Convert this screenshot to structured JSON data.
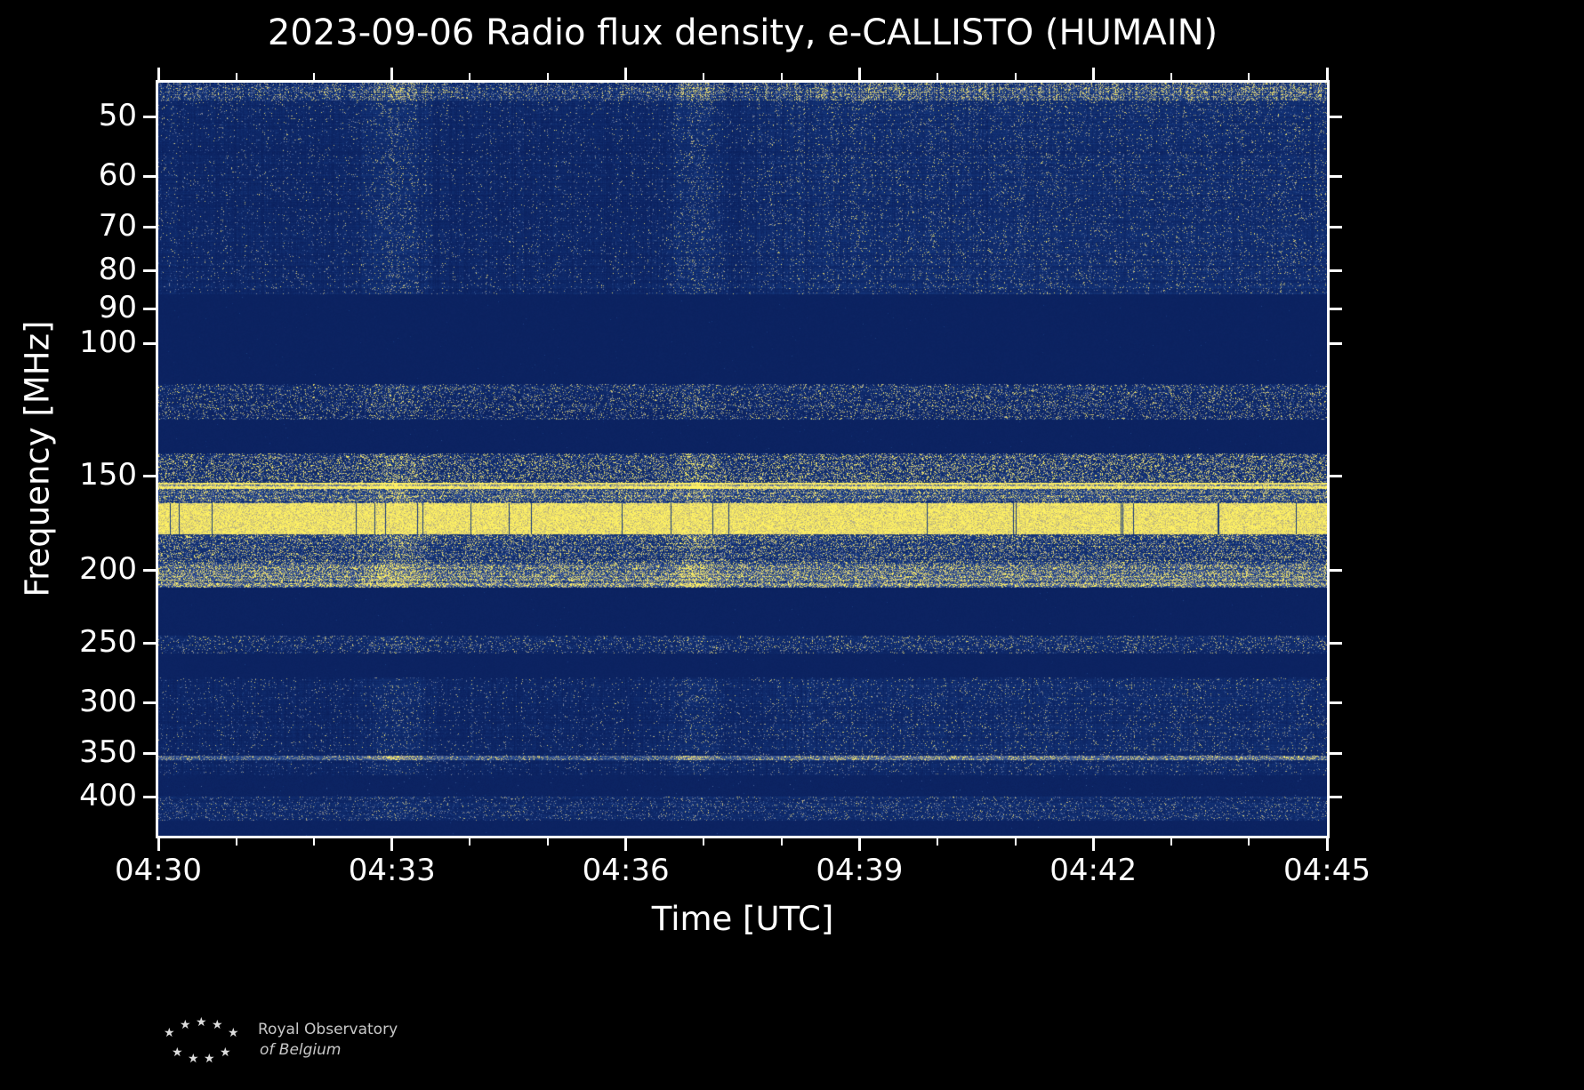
{
  "title": "2023-09-06 Radio flux density, e-CALLISTO (HUMAIN)",
  "x_axis": {
    "label": "Time [UTC]",
    "start_min": 0,
    "end_min": 15,
    "minor_step_min": 1,
    "ticks": [
      {
        "label": "04:30",
        "t": 0
      },
      {
        "label": "04:33",
        "t": 3
      },
      {
        "label": "04:36",
        "t": 6
      },
      {
        "label": "04:39",
        "t": 9
      },
      {
        "label": "04:42",
        "t": 12
      },
      {
        "label": "04:45",
        "t": 15
      }
    ]
  },
  "y_axis": {
    "label": "Frequency [MHz]",
    "scale": "log",
    "fmin": 45,
    "fmax": 450,
    "ticks": [
      50,
      60,
      70,
      80,
      90,
      100,
      150,
      200,
      250,
      300,
      350,
      400
    ]
  },
  "logo": {
    "star_glyph": "★",
    "line1": "Royal Observatory",
    "line2": "of Belgium"
  },
  "chart_data": {
    "type": "heatmap",
    "title": "2023-09-06 Radio flux density, e-CALLISTO (HUMAIN)",
    "xlabel": "Time [UTC]",
    "ylabel": "Frequency [MHz]",
    "date": "2023-09-06",
    "instrument": "e-CALLISTO",
    "station": "HUMAIN",
    "x_range_utc": [
      "04:30",
      "04:45"
    ],
    "x_tick_labels": [
      "04:30",
      "04:33",
      "04:36",
      "04:39",
      "04:42",
      "04:45"
    ],
    "y_tick_labels_mhz": [
      50,
      60,
      70,
      80,
      90,
      100,
      150,
      200,
      250,
      300,
      350,
      400
    ],
    "y_range_mhz": [
      45,
      450
    ],
    "y_scale": "log",
    "legend": "none",
    "grid": "off",
    "colormap": {
      "stops": [
        [
          0.0,
          "#0a1f5c"
        ],
        [
          0.3,
          "#16397f"
        ],
        [
          0.5,
          "#3d5b96"
        ],
        [
          0.65,
          "#7a82a0"
        ],
        [
          0.8,
          "#c9bd77"
        ],
        [
          1.0,
          "#fff263"
        ]
      ]
    },
    "bands": [
      {
        "f0": 45,
        "f1": 47.5,
        "base": 0.18,
        "noise": 0.12,
        "sp": 0.25,
        "sg": 0.7,
        "evt": 1.0,
        "rise": 0.8,
        "rowvar": 1,
        "colvar": 1,
        "desc": "bright noisy top edge rows"
      },
      {
        "f0": 47.5,
        "f1": 86,
        "base": 0.09,
        "noise": 0.07,
        "sp": 0.05,
        "sg": 0.75,
        "evt": 1.8,
        "rise": 1.2,
        "rowvar": 1,
        "colvar": 1,
        "desc": "broadband speckle 45-86 MHz; burst columns near 04:33 and 04:37; enhanced activity from ~04:37 to 04:45"
      },
      {
        "f0": 86,
        "f1": 113,
        "base": 0.045,
        "noise": 0.02,
        "sp": 0.001,
        "sg": 0.3,
        "desc": "quiet blanked gap (FM band)"
      },
      {
        "f0": 113,
        "f1": 126,
        "base": 0.1,
        "noise": 0.07,
        "sp": 0.18,
        "sg": 0.85,
        "evt": 0.5,
        "rise": 0.25,
        "rowvar": 1,
        "desc": "narrow speckled interference stripe ~115-125 MHz"
      },
      {
        "f0": 126,
        "f1": 140,
        "base": 0.05,
        "noise": 0.02,
        "sp": 0.002,
        "sg": 0.3,
        "desc": "quiet gap"
      },
      {
        "f0": 140,
        "f1": 153,
        "base": 0.14,
        "noise": 0.1,
        "sp": 0.3,
        "sg": 0.9,
        "evt": 0.5,
        "rise": 0.2,
        "rowvar": 1,
        "desc": "dense speckled band ~140-153 MHz"
      },
      {
        "f0": 153,
        "f1": 156,
        "base": 0.72,
        "noise": 0.12,
        "sp": 0.5,
        "sg": 0.5,
        "evt": 0.2,
        "rowvar": 1,
        "desc": "bright continuous carrier line ~154 MHz"
      },
      {
        "f0": 156,
        "f1": 163,
        "base": 0.3,
        "noise": 0.12,
        "sp": 0.35,
        "sg": 0.7,
        "evt": 0.3,
        "rowvar": 1,
        "desc": "medium speckled band"
      },
      {
        "f0": 163,
        "f1": 179,
        "base": 0.92,
        "noise": 0.1,
        "sp": 0.3,
        "sg": 0.2,
        "drop": 1,
        "desc": "saturated bright yellow band ~165-178 MHz with occasional dark dropout columns"
      },
      {
        "f0": 179,
        "f1": 196,
        "base": 0.22,
        "noise": 0.12,
        "sp": 0.3,
        "sg": 0.8,
        "evt": 0.4,
        "rowvar": 1,
        "desc": "medium speckle band"
      },
      {
        "f0": 196,
        "f1": 211,
        "base": 0.38,
        "noise": 0.14,
        "sp": 0.45,
        "sg": 0.7,
        "evt": 0.3,
        "rowvar": 1,
        "desc": "dense yellowish rows just below 200 MHz"
      },
      {
        "f0": 211,
        "f1": 244,
        "base": 0.05,
        "noise": 0.02,
        "sp": 0.001,
        "sg": 0.3,
        "desc": "quiet gap"
      },
      {
        "f0": 244,
        "f1": 258,
        "base": 0.11,
        "noise": 0.08,
        "sp": 0.14,
        "sg": 0.8,
        "evt": 0.5,
        "rise": 0.3,
        "rowvar": 1,
        "desc": "narrow speckled stripe near 250 MHz"
      },
      {
        "f0": 258,
        "f1": 277,
        "base": 0.05,
        "noise": 0.02,
        "sp": 0.001,
        "sg": 0.3,
        "desc": "quiet gap"
      },
      {
        "f0": 277,
        "f1": 352,
        "base": 0.08,
        "noise": 0.07,
        "sp": 0.05,
        "sg": 0.75,
        "evt": 1.5,
        "rise": 1.0,
        "rowvar": 1,
        "colvar": 1,
        "desc": "broadband speckle 277-352 MHz; burst columns near 04:33 and 04:37; busier right half"
      },
      {
        "f0": 352,
        "f1": 357,
        "base": 0.4,
        "noise": 0.12,
        "sp": 0.3,
        "sg": 0.5,
        "evt": 0.5,
        "rise": 0.3,
        "desc": "bright narrow line ~355 MHz"
      },
      {
        "f0": 357,
        "f1": 374,
        "base": 0.08,
        "noise": 0.06,
        "sp": 0.05,
        "sg": 0.7,
        "evt": 1.2,
        "rise": 0.8,
        "rowvar": 1,
        "colvar": 1,
        "desc": "speckle band"
      },
      {
        "f0": 374,
        "f1": 399,
        "base": 0.055,
        "noise": 0.03,
        "sp": 0.004,
        "sg": 0.5,
        "desc": "mostly quiet band"
      },
      {
        "f0": 399,
        "f1": 430,
        "base": 0.12,
        "noise": 0.08,
        "sp": 0.12,
        "sg": 0.7,
        "evt": 0.4,
        "rise": 0.3,
        "rowvar": 1,
        "desc": "speckled stripe ~400-425 MHz at bottom"
      },
      {
        "f0": 430,
        "f1": 450,
        "base": 0.05,
        "noise": 0.02,
        "sp": 0.001,
        "sg": 0.3,
        "desc": "quiet bottom edge"
      }
    ],
    "events": [
      {
        "t_min": 3.05,
        "sigma_min": 0.22,
        "desc": "vertical burst / interference column near 04:33"
      },
      {
        "t_min": 6.9,
        "sigma_min": 0.18,
        "desc": "vertical burst column near 04:36.9"
      }
    ],
    "rising_activity": {
      "from_min": 7.3,
      "ramp_min": 1.2,
      "desc": "enhanced broadband speckle from ~04:37 until 04:45 in the low (45-86 MHz) and high (277-374 MHz) bands"
    }
  }
}
